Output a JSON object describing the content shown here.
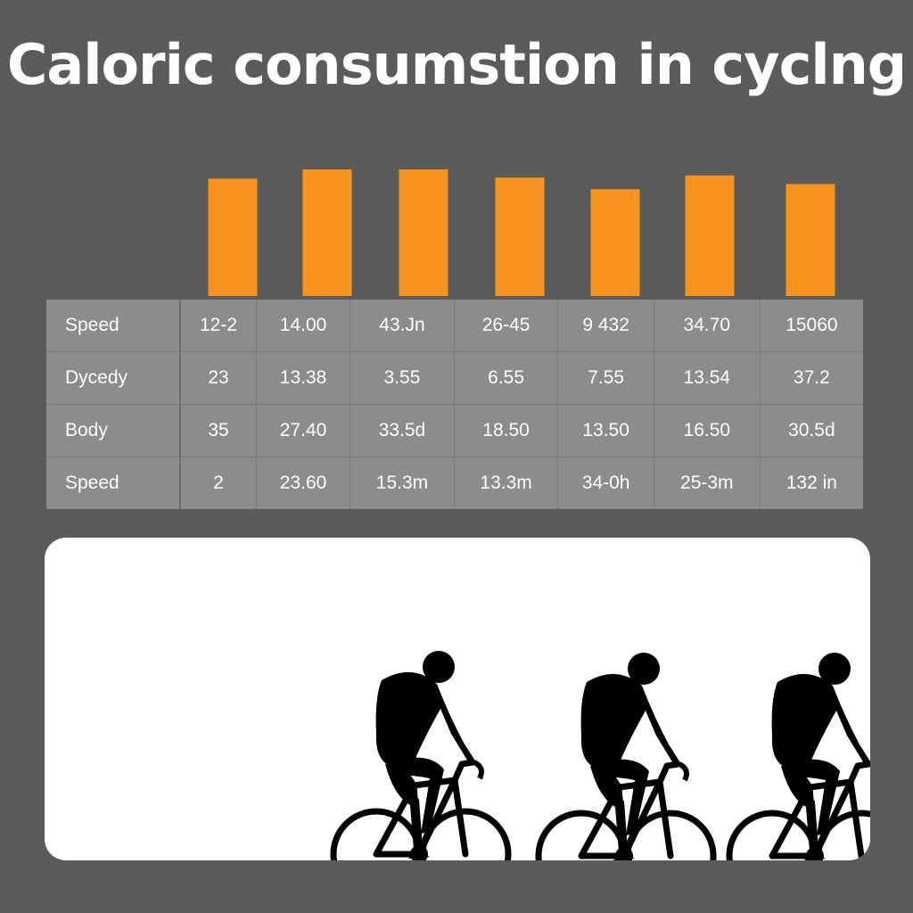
{
  "chart_data": {
    "type": "bar",
    "title": "Caloric consumstion in cyclng",
    "categories": [
      "",
      "",
      "",
      "",
      "",
      "",
      ""
    ],
    "values": [
      111,
      120,
      127,
      112,
      101,
      114,
      106
    ],
    "ylim": [
      0,
      140
    ],
    "grid": false,
    "bar_color": "#f7941d",
    "table": {
      "rows": [
        {
          "label": "Speed",
          "cells": [
            "12-2",
            "14.00",
            "43.Jn",
            "26-45",
            "9 432",
            "34.70",
            "15060"
          ]
        },
        {
          "label": "Dycedy",
          "cells": [
            "23",
            "13.38",
            "3.55",
            "6.55",
            "7.55",
            "13.54",
            "37.2"
          ]
        },
        {
          "label": "Body",
          "cells": [
            "35",
            "27.40",
            "33.5d",
            "18.50",
            "13.50",
            "16.50",
            "30.5d"
          ]
        },
        {
          "label": "Speed",
          "cells": [
            "2",
            "23.60",
            "15.3m",
            "13.3m",
            "34-0h",
            "25-3m",
            "132 in"
          ]
        }
      ]
    }
  },
  "illustration": {
    "icon": "cyclist-silhouette-icon",
    "count": 3,
    "panel_color": "#ffffff",
    "silhouette_color": "#000000"
  },
  "colors": {
    "background": "#5b5b5b",
    "bar": "#f7941d",
    "table": "#8c8c8c",
    "text": "#ffffff"
  }
}
